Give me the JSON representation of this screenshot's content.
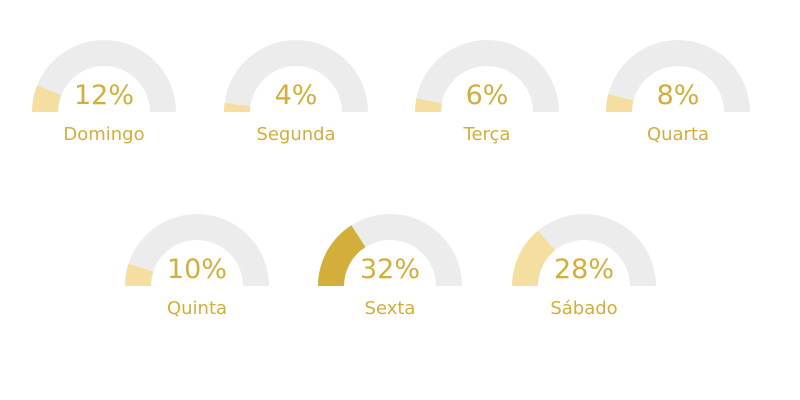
{
  "chart_data": {
    "type": "gauge",
    "title": "",
    "max": 100,
    "unit": "%",
    "items": [
      {
        "label": "Domingo",
        "value": 12,
        "value_label": "12%"
      },
      {
        "label": "Segunda",
        "value": 4,
        "value_label": "4%"
      },
      {
        "label": "Terça",
        "value": 6,
        "value_label": "6%"
      },
      {
        "label": "Quarta",
        "value": 8,
        "value_label": "8%"
      },
      {
        "label": "Quinta",
        "value": 10,
        "value_label": "10%"
      },
      {
        "label": "Sexta",
        "value": 32,
        "value_label": "32%",
        "highlight": true
      },
      {
        "label": "Sábado",
        "value": 28,
        "value_label": "28%"
      }
    ],
    "colors": {
      "track": "#ececec",
      "fill": "#f5dfa0",
      "highlight_fill": "#d4ae3a",
      "text": "#d4ae3a"
    }
  }
}
